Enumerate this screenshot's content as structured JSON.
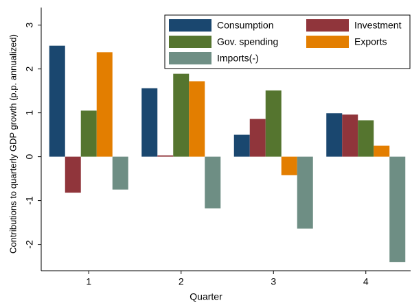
{
  "chart_data": {
    "type": "bar",
    "x_label": "Quarter",
    "y_label": "Contributions to quarterly GDP growth (p.p. annualized)",
    "categories": [
      "1",
      "2",
      "3",
      "4"
    ],
    "series": [
      {
        "name": "Consumption",
        "color": "#1a476f",
        "values": [
          2.53,
          1.56,
          0.5,
          0.99
        ]
      },
      {
        "name": "Investment",
        "color": "#90353b",
        "values": [
          -0.82,
          0.03,
          0.86,
          0.96
        ]
      },
      {
        "name": "Gov. spending",
        "color": "#55752f",
        "values": [
          1.05,
          1.89,
          1.51,
          0.83
        ]
      },
      {
        "name": "Exports",
        "color": "#e37e00",
        "values": [
          2.38,
          1.72,
          -0.42,
          0.25
        ]
      },
      {
        "name": "Imports(-)",
        "color": "#6e8e84",
        "values": [
          -0.75,
          -1.18,
          -1.64,
          -2.4
        ]
      }
    ],
    "ylim": [
      -2.6,
      3.4
    ],
    "yticks": [
      -2,
      -1,
      0,
      1,
      2,
      3
    ],
    "legend_position": "top-right"
  }
}
